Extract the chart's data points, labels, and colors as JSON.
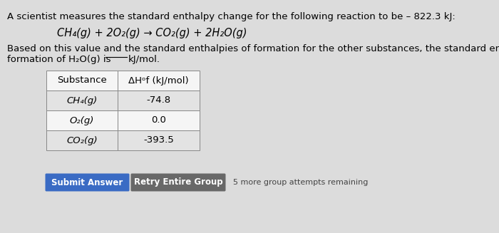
{
  "bg_color": "#dcdcdc",
  "title_line1": "A scientist measures the standard enthalpy change for the following reaction to be – 822.3 kJ:",
  "reaction": "CH₄(g) + 2O₂(g) → CO₂(g) + 2H₂O(g)",
  "para_line1": "Based on this value and the standard enthalpies of formation for the other substances, the standard enthalpy of",
  "para_line2": "formation of H₂O(g) is        kJ/mol.",
  "table_header_col1": "Substance",
  "table_header_col2": "ΔHᵒf (kJ/mol)",
  "table_rows": [
    [
      "CH₄(g)",
      "-74.8"
    ],
    [
      "O₂(g)",
      "0.0"
    ],
    [
      "CO₂(g)",
      "-393.5"
    ]
  ],
  "btn1_text": "Submit Answer",
  "btn1_color": "#3a6bc4",
  "btn2_text": "Retry Entire Group",
  "btn2_color": "#686868",
  "remaining_text": "5 more group attempts remaining",
  "body_fontsize": 9.5,
  "reaction_fontsize": 10.5,
  "table_fontsize": 9.5,
  "btn_fontsize": 8.5,
  "remaining_fontsize": 8.0,
  "cell_bg_light": "#f5f5f5",
  "cell_bg_dark": "#e3e3e3",
  "border_color": "#888888"
}
